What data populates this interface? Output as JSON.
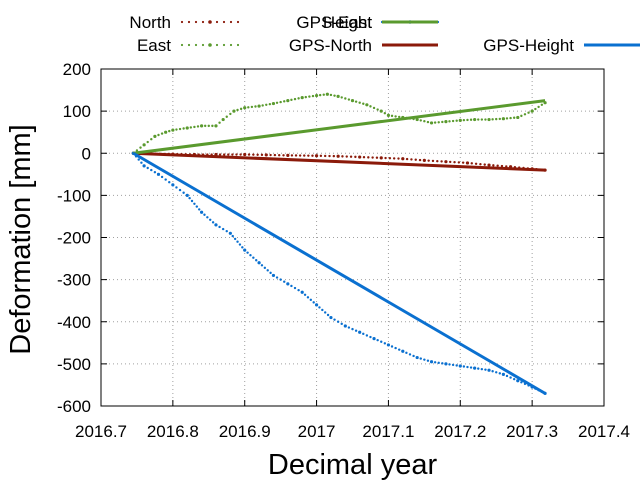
{
  "chart_data": {
    "type": "line",
    "title": "",
    "xlabel": "Decimal year",
    "ylabel": "Deformation [mm]",
    "xlim": [
      2016.7,
      2017.4
    ],
    "ylim": [
      -600,
      200
    ],
    "xticks": [
      2016.7,
      2016.8,
      2016.9,
      2017,
      2017.1,
      2017.2,
      2017.3,
      2017.4
    ],
    "xtick_labels": [
      "2016.7",
      "2016.8",
      "2016.9",
      "2017",
      "2017.1",
      "2017.2",
      "2017.3",
      "2017.4"
    ],
    "yticks": [
      200,
      100,
      0,
      -100,
      -200,
      -300,
      -400,
      -500,
      -600
    ],
    "ytick_labels": [
      "200",
      "100",
      "0",
      "-100",
      "-200",
      "-300",
      "-400",
      "-500",
      "-600"
    ],
    "grid": true,
    "legend_position": "top",
    "series": [
      {
        "name": "North",
        "style": "dotted",
        "color": "#8b1a0a",
        "x": [
          2016.745,
          2016.77,
          2016.8,
          2016.83,
          2016.86,
          2016.9,
          2016.93,
          2016.96,
          2017.0,
          2017.03,
          2017.06,
          2017.09,
          2017.12,
          2017.15,
          2017.18,
          2017.21,
          2017.24,
          2017.27,
          2017.3,
          2017.318
        ],
        "y": [
          0,
          -1,
          -2,
          -3,
          -3,
          -3,
          -4,
          -5,
          -6,
          -7,
          -9,
          -11,
          -13,
          -17,
          -20,
          -23,
          -28,
          -32,
          -37,
          -40
        ]
      },
      {
        "name": "East",
        "style": "dotted",
        "color": "#5a9a2e",
        "x": [
          2016.745,
          2016.76,
          2016.775,
          2016.79,
          2016.8,
          2016.82,
          2016.84,
          2016.86,
          2016.87,
          2016.885,
          2016.9,
          2016.92,
          2016.94,
          2016.96,
          2016.98,
          2017.0,
          2017.015,
          2017.03,
          2017.05,
          2017.07,
          2017.09,
          2017.1,
          2017.12,
          2017.14,
          2017.16,
          2017.18,
          2017.2,
          2017.22,
          2017.24,
          2017.26,
          2017.28,
          2017.3,
          2017.318
        ],
        "y": [
          0,
          20,
          40,
          50,
          55,
          60,
          65,
          65,
          80,
          100,
          108,
          112,
          118,
          125,
          132,
          137,
          140,
          135,
          125,
          115,
          100,
          90,
          85,
          80,
          72,
          75,
          78,
          80,
          80,
          82,
          85,
          100,
          120
        ]
      },
      {
        "name": "Height",
        "style": "dotted",
        "color": "#0a70d0",
        "x": [
          2016.745,
          2016.76,
          2016.78,
          2016.8,
          2016.82,
          2016.84,
          2016.86,
          2016.88,
          2016.9,
          2016.92,
          2016.94,
          2016.96,
          2016.98,
          2017.0,
          2017.02,
          2017.04,
          2017.06,
          2017.08,
          2017.1,
          2017.12,
          2017.14,
          2017.16,
          2017.18,
          2017.2,
          2017.22,
          2017.24,
          2017.26,
          2017.28,
          2017.3,
          2017.318
        ],
        "y": [
          0,
          -30,
          -50,
          -75,
          -100,
          -140,
          -170,
          -190,
          -230,
          -260,
          -290,
          -310,
          -330,
          -360,
          -390,
          -410,
          -425,
          -440,
          -455,
          -470,
          -485,
          -495,
          -500,
          -505,
          -510,
          -515,
          -525,
          -540,
          -555,
          -570
        ]
      },
      {
        "name": "GPS-North",
        "style": "solid",
        "color": "#8b1a0a",
        "x": [
          2016.745,
          2017.318
        ],
        "y": [
          0,
          -40
        ]
      },
      {
        "name": "GPS-East",
        "style": "solid",
        "color": "#5a9a2e",
        "x": [
          2016.745,
          2017.318
        ],
        "y": [
          0,
          125
        ]
      },
      {
        "name": "GPS-Height",
        "style": "solid",
        "color": "#0a70d0",
        "x": [
          2016.745,
          2017.318
        ],
        "y": [
          0,
          -570
        ]
      }
    ]
  }
}
